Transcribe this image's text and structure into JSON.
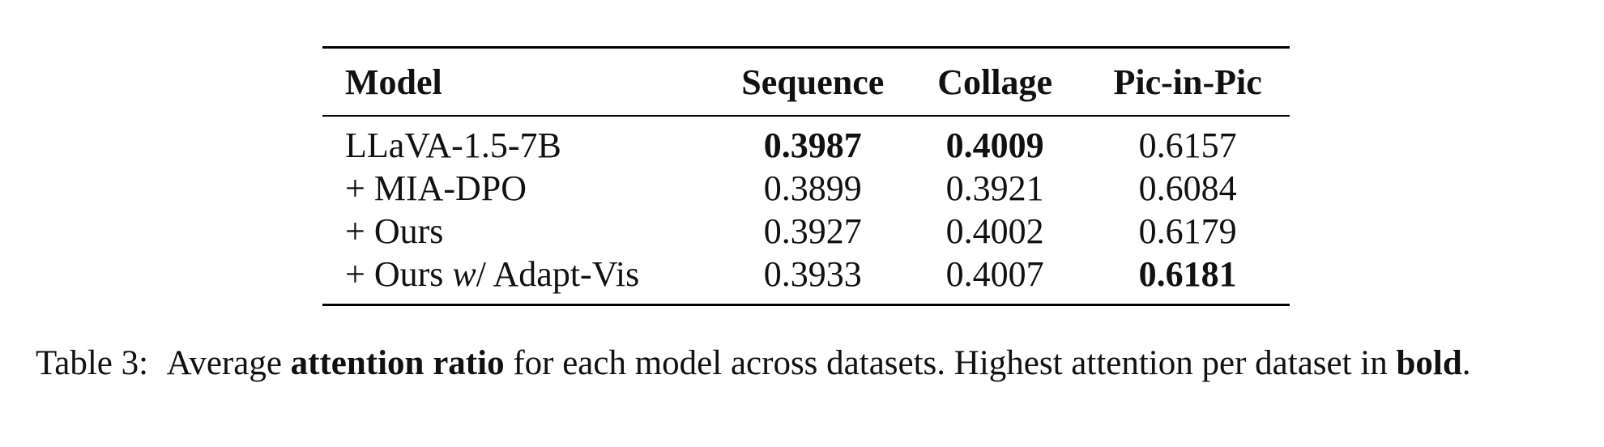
{
  "table": {
    "headers": [
      "Model",
      "Sequence",
      "Collage",
      "Pic-in-Pic"
    ],
    "rows": [
      {
        "model": "LLaVA-1.5-7B",
        "sequence": "0.3987",
        "collage": "0.4009",
        "pic_in_pic": "0.6157",
        "bold": [
          "sequence",
          "collage"
        ]
      },
      {
        "model": "+ MIA-DPO",
        "sequence": "0.3899",
        "collage": "0.3921",
        "pic_in_pic": "0.6084",
        "bold": []
      },
      {
        "model": "+ Ours",
        "sequence": "0.3927",
        "collage": "0.4002",
        "pic_in_pic": "0.6179",
        "bold": []
      },
      {
        "model_prefix": "+ Ours",
        "model_italic": "w",
        "model_suffix": "/ Adapt-Vis",
        "sequence": "0.3933",
        "collage": "0.4007",
        "pic_in_pic": "0.6181",
        "bold": [
          "pic_in_pic"
        ]
      }
    ]
  },
  "caption": {
    "label": "Table 3:",
    "part1": "Average",
    "bold1": "attention ratio",
    "part2": "for each model across datasets. Highest attention per dataset in",
    "bold2": "bold",
    "end": "."
  }
}
